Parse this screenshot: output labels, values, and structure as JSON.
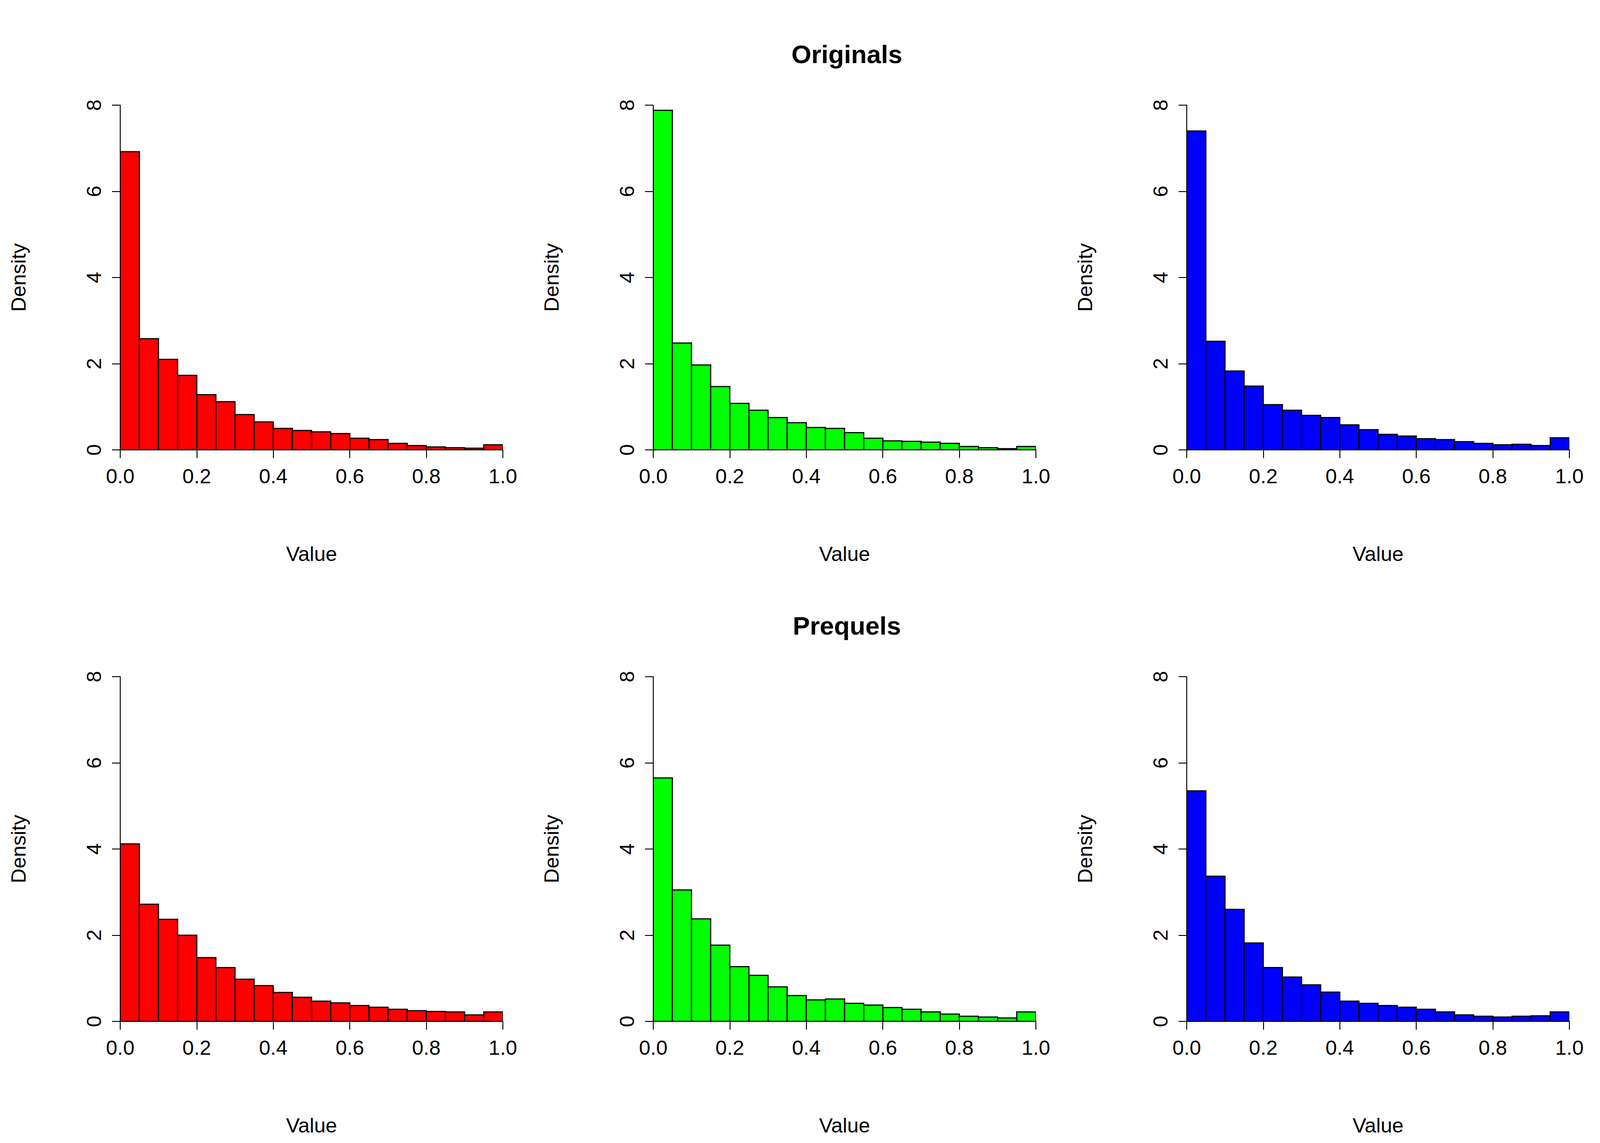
{
  "chart_data": [
    {
      "type": "histogram",
      "color": "#ff0000",
      "xlabel": "Value",
      "ylabel": "Density",
      "bins": [
        0,
        0.05,
        0.1,
        0.15,
        0.2,
        0.25,
        0.3,
        0.35,
        0.4,
        0.45,
        0.5,
        0.55,
        0.6,
        0.65,
        0.7,
        0.75,
        0.8,
        0.85,
        0.9,
        0.95,
        1
      ],
      "values": [
        6.92,
        2.58,
        2.1,
        1.73,
        1.28,
        1.12,
        0.82,
        0.65,
        0.5,
        0.45,
        0.42,
        0.38,
        0.27,
        0.24,
        0.15,
        0.1,
        0.07,
        0.05,
        0.04,
        0.12
      ],
      "xlim": [
        0,
        1
      ],
      "xticks": [
        {
          "value": 0,
          "label": "0.0"
        },
        0.2,
        0.4,
        0.6,
        0.8,
        {
          "value": 1,
          "label": "1.0"
        }
      ],
      "ylim": [
        0,
        8
      ],
      "yticks": [
        0,
        2,
        4,
        6,
        8
      ],
      "grid": false
    },
    {
      "type": "histogram",
      "title": "Originals",
      "color": "#00ff00",
      "xlabel": "Value",
      "ylabel": "Density",
      "bins": [
        0,
        0.05,
        0.1,
        0.15,
        0.2,
        0.25,
        0.3,
        0.35,
        0.4,
        0.45,
        0.5,
        0.55,
        0.6,
        0.65,
        0.7,
        0.75,
        0.8,
        0.85,
        0.9,
        0.95,
        1
      ],
      "values": [
        7.88,
        2.48,
        1.97,
        1.47,
        1.08,
        0.92,
        0.75,
        0.63,
        0.52,
        0.5,
        0.4,
        0.27,
        0.21,
        0.2,
        0.18,
        0.15,
        0.08,
        0.05,
        0.03,
        0.08
      ],
      "xlim": [
        0,
        1
      ],
      "xticks": [
        {
          "value": 0,
          "label": "0.0"
        },
        0.2,
        0.4,
        0.6,
        0.8,
        {
          "value": 1,
          "label": "1.0"
        }
      ],
      "ylim": [
        0,
        8
      ],
      "yticks": [
        0,
        2,
        4,
        6,
        8
      ],
      "grid": false
    },
    {
      "type": "histogram",
      "color": "#0000ff",
      "xlabel": "Value",
      "ylabel": "Density",
      "bins": [
        0,
        0.05,
        0.1,
        0.15,
        0.2,
        0.25,
        0.3,
        0.35,
        0.4,
        0.45,
        0.5,
        0.55,
        0.6,
        0.65,
        0.7,
        0.75,
        0.8,
        0.85,
        0.9,
        0.95,
        1
      ],
      "values": [
        7.4,
        2.52,
        1.83,
        1.48,
        1.05,
        0.92,
        0.8,
        0.75,
        0.58,
        0.47,
        0.36,
        0.32,
        0.26,
        0.24,
        0.19,
        0.15,
        0.12,
        0.13,
        0.1,
        0.28
      ],
      "xlim": [
        0,
        1
      ],
      "xticks": [
        {
          "value": 0,
          "label": "0.0"
        },
        0.2,
        0.4,
        0.6,
        0.8,
        {
          "value": 1,
          "label": "1.0"
        }
      ],
      "ylim": [
        0,
        8
      ],
      "yticks": [
        0,
        2,
        4,
        6,
        8
      ],
      "grid": false
    },
    {
      "type": "histogram",
      "color": "#ff0000",
      "xlabel": "Value",
      "ylabel": "Density",
      "bins": [
        0,
        0.05,
        0.1,
        0.15,
        0.2,
        0.25,
        0.3,
        0.35,
        0.4,
        0.45,
        0.5,
        0.55,
        0.6,
        0.65,
        0.7,
        0.75,
        0.8,
        0.85,
        0.9,
        0.95,
        1
      ],
      "values": [
        4.12,
        2.72,
        2.37,
        2.0,
        1.48,
        1.25,
        0.98,
        0.83,
        0.67,
        0.56,
        0.47,
        0.43,
        0.37,
        0.33,
        0.28,
        0.25,
        0.23,
        0.22,
        0.15,
        0.22
      ],
      "xlim": [
        0,
        1
      ],
      "xticks": [
        {
          "value": 0,
          "label": "0.0"
        },
        0.2,
        0.4,
        0.6,
        0.8,
        {
          "value": 1,
          "label": "1.0"
        }
      ],
      "ylim": [
        0,
        8
      ],
      "yticks": [
        0,
        2,
        4,
        6,
        8
      ],
      "grid": false
    },
    {
      "type": "histogram",
      "title": "Prequels",
      "color": "#00ff00",
      "xlabel": "Value",
      "ylabel": "Density",
      "bins": [
        0,
        0.05,
        0.1,
        0.15,
        0.2,
        0.25,
        0.3,
        0.35,
        0.4,
        0.45,
        0.5,
        0.55,
        0.6,
        0.65,
        0.7,
        0.75,
        0.8,
        0.85,
        0.9,
        0.95,
        1
      ],
      "values": [
        5.65,
        3.05,
        2.38,
        1.77,
        1.27,
        1.07,
        0.8,
        0.6,
        0.5,
        0.52,
        0.42,
        0.38,
        0.32,
        0.28,
        0.22,
        0.17,
        0.12,
        0.1,
        0.08,
        0.22
      ],
      "xlim": [
        0,
        1
      ],
      "xticks": [
        {
          "value": 0,
          "label": "0.0"
        },
        0.2,
        0.4,
        0.6,
        0.8,
        {
          "value": 1,
          "label": "1.0"
        }
      ],
      "ylim": [
        0,
        8
      ],
      "yticks": [
        0,
        2,
        4,
        6,
        8
      ],
      "grid": false
    },
    {
      "type": "histogram",
      "color": "#0000ff",
      "xlabel": "Value",
      "ylabel": "Density",
      "bins": [
        0,
        0.05,
        0.1,
        0.15,
        0.2,
        0.25,
        0.3,
        0.35,
        0.4,
        0.45,
        0.5,
        0.55,
        0.6,
        0.65,
        0.7,
        0.75,
        0.8,
        0.85,
        0.9,
        0.95,
        1
      ],
      "values": [
        5.35,
        3.37,
        2.6,
        1.82,
        1.25,
        1.03,
        0.85,
        0.68,
        0.47,
        0.42,
        0.37,
        0.33,
        0.28,
        0.22,
        0.15,
        0.12,
        0.1,
        0.12,
        0.13,
        0.22
      ],
      "xlim": [
        0,
        1
      ],
      "xticks": [
        {
          "value": 0,
          "label": "0.0"
        },
        0.2,
        0.4,
        0.6,
        0.8,
        {
          "value": 1,
          "label": "1.0"
        }
      ],
      "ylim": [
        0,
        8
      ],
      "yticks": [
        0,
        2,
        4,
        6,
        8
      ],
      "grid": false
    }
  ]
}
